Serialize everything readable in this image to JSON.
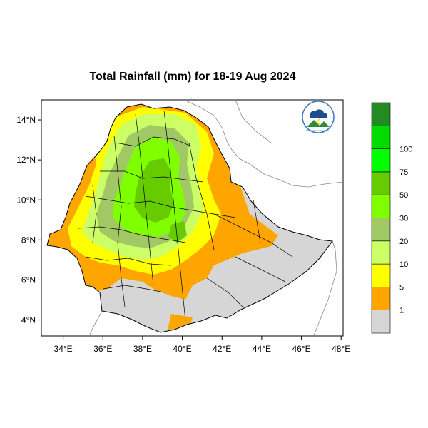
{
  "title": "Total Rainfall (mm) for 18-19 Aug 2024",
  "map": {
    "lon_range": [
      32.9,
      48.1
    ],
    "lat_range": [
      3.2,
      15.0
    ],
    "x_ticks": [
      "34°E",
      "36°E",
      "38°E",
      "40°E",
      "42°E",
      "44°E",
      "46°E",
      "48°E"
    ],
    "x_tick_values": [
      34,
      36,
      38,
      40,
      42,
      44,
      46,
      48
    ],
    "y_ticks": [
      "14°N",
      "12°N",
      "10°N",
      "8°N",
      "6°N",
      "4°N"
    ],
    "y_tick_values": [
      14,
      12,
      10,
      8,
      6,
      4
    ]
  },
  "legend": {
    "bins": [
      {
        "color": "#d6d6d6"
      },
      {
        "color": "#ffa500"
      },
      {
        "color": "#ffff00"
      },
      {
        "color": "#ccff66"
      },
      {
        "color": "#a0c864"
      },
      {
        "color": "#80ff00"
      },
      {
        "color": "#66cc00"
      },
      {
        "color": "#00ff00"
      },
      {
        "color": "#00dc00"
      },
      {
        "color": "#228b22"
      }
    ],
    "labels": [
      "1",
      "5",
      "10",
      "20",
      "30",
      "50",
      "75",
      "100"
    ]
  },
  "logo": {
    "caption": "Ethiopian Meteorology Institute"
  },
  "colors": {
    "no_rain": "#d6d6d6",
    "light": "#ffa500",
    "moderate": "#ffff00",
    "green_light": "#ccff66",
    "green_mid": "#a0c864",
    "green_bright": "#80ff00",
    "green_dark": "#66cc00"
  }
}
